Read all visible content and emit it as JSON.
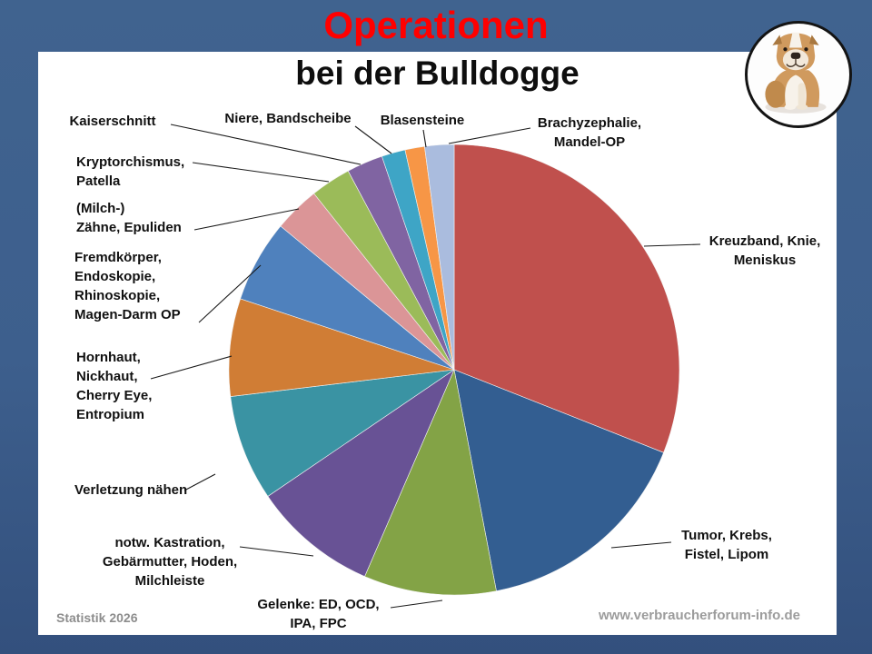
{
  "header": {
    "title": "Operationen",
    "subtitle": "bei der Bulldogge"
  },
  "footer": {
    "left": "Statistik 2026",
    "right": "www.verbraucherforum-info.de"
  },
  "colors": {
    "frame_blue": "#3D5F8D",
    "title_red": "#FF0000",
    "label_text": "#111111",
    "leader_line": "#1a1a1a",
    "footer_gray": "#9c9c9c"
  },
  "chart_data": {
    "type": "pie",
    "title": "Operationen bei der Bulldogge",
    "unit": "percent (estimated from slice angles)",
    "start_angle_deg": 0,
    "clockwise": true,
    "legend": "none (direct labels with leader lines)",
    "slices": [
      {
        "label": "Kreuzband, Knie,\nMeniskus",
        "value": 31.0,
        "color": "#C0504D"
      },
      {
        "label": "Tumor, Krebs,\nFistel, Lipom",
        "value": 16.0,
        "color": "#335E91"
      },
      {
        "label": "Gelenke: ED, OCD,\nIPA, FPC",
        "value": 9.5,
        "color": "#83A346"
      },
      {
        "label": "notw. Kastration,\nGebärmutter, Hoden,\nMilchleiste",
        "value": 9.0,
        "color": "#685295"
      },
      {
        "label": "Verletzung nähen",
        "value": 7.6,
        "color": "#3A93A3"
      },
      {
        "label": "Hornhaut,\nNickhaut,\nCherry Eye,\nEntropium",
        "value": 7.0,
        "color": "#D07D35"
      },
      {
        "label": "Fremdkörper,\nEndoskopie,\nRhinoskopie,\nMagen-Darm OP",
        "value": 5.9,
        "color": "#4F81BD"
      },
      {
        "label": "(Milch-)\nZähne, Epuliden",
        "value": 3.3,
        "color": "#DB9597"
      },
      {
        "label": "Kryptorchismus,\nPatella",
        "value": 2.9,
        "color": "#9BBB59"
      },
      {
        "label": "Kaiserschnitt",
        "value": 2.6,
        "color": "#8064A2"
      },
      {
        "label": "Niere, Bandscheibe",
        "value": 1.7,
        "color": "#3EA5C6"
      },
      {
        "label": "Blasensteine",
        "value": 1.4,
        "color": "#F79646"
      },
      {
        "label": "Brachyzephalie,\nMandel-OP",
        "value": 2.1,
        "color": "#AABCDE"
      }
    ]
  }
}
